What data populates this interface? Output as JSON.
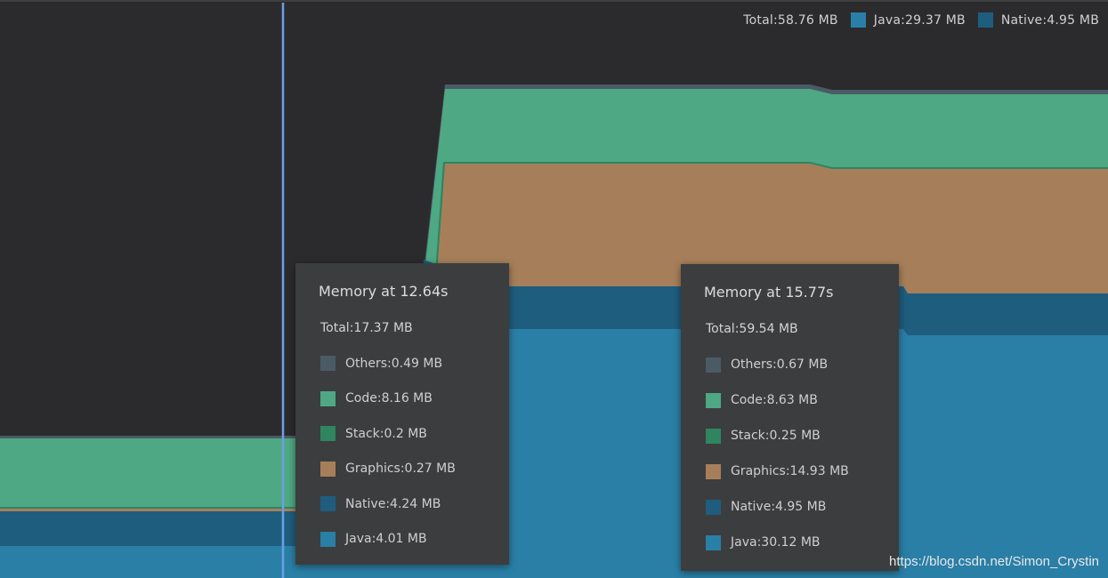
{
  "colors": {
    "background": "#2b2b2d",
    "java": "#2a7fa6",
    "native": "#1f5d7e",
    "graphics": "#a67f5a",
    "stack": "#2f8560",
    "code": "#4ea883",
    "others": "#4b5b66",
    "cursor": "#6d9ee8"
  },
  "legend": {
    "total": "Total:58.76 MB",
    "java": "Java:29.37 MB",
    "native": "Native:4.95 MB"
  },
  "chart_data": {
    "type": "area",
    "time_unit": "s",
    "y_unit": "MB",
    "cursor_time": 12.64,
    "layers": [
      "Java",
      "Native",
      "Graphics",
      "Stack",
      "Code",
      "Others"
    ],
    "series": [
      {
        "name": "Java",
        "x": [
          12.64,
          15.77
        ],
        "values": [
          4.01,
          30.12
        ]
      },
      {
        "name": "Native",
        "x": [
          12.64,
          15.77
        ],
        "values": [
          4.24,
          4.95
        ]
      },
      {
        "name": "Graphics",
        "x": [
          12.64,
          15.77
        ],
        "values": [
          0.27,
          14.93
        ]
      },
      {
        "name": "Stack",
        "x": [
          12.64,
          15.77
        ],
        "values": [
          0.2,
          0.25
        ]
      },
      {
        "name": "Code",
        "x": [
          12.64,
          15.77
        ],
        "values": [
          8.16,
          8.63
        ]
      },
      {
        "name": "Others",
        "x": [
          12.64,
          15.77
        ],
        "values": [
          0.49,
          0.67
        ]
      }
    ]
  },
  "tooltips": [
    {
      "title": "Memory at 12.64s",
      "total": "Total:17.37 MB",
      "rows": [
        {
          "label": "Others:",
          "value": "0.49 MB",
          "color": "#4b5b66"
        },
        {
          "label": "Code:",
          "value": "8.16 MB",
          "color": "#4ea883"
        },
        {
          "label": "Stack:",
          "value": "0.2 MB",
          "color": "#2f8560"
        },
        {
          "label": "Graphics:",
          "value": "0.27 MB",
          "color": "#a67f5a"
        },
        {
          "label": "Native:",
          "value": "4.24 MB",
          "color": "#1f5d7e"
        },
        {
          "label": "Java:",
          "value": "4.01 MB",
          "color": "#2a7fa6"
        }
      ]
    },
    {
      "title": "Memory at 15.77s",
      "total": "Total:59.54 MB",
      "rows": [
        {
          "label": "Others:",
          "value": "0.67 MB",
          "color": "#4b5b66"
        },
        {
          "label": "Code:",
          "value": "8.63 MB",
          "color": "#4ea883"
        },
        {
          "label": "Stack:",
          "value": "0.25 MB",
          "color": "#2f8560"
        },
        {
          "label": "Graphics:",
          "value": "14.93 MB",
          "color": "#a67f5a"
        },
        {
          "label": "Native:",
          "value": "4.95 MB",
          "color": "#1f5d7e"
        },
        {
          "label": "Java:",
          "value": "30.12 MB",
          "color": "#2a7fa6"
        }
      ]
    }
  ],
  "watermark": "https://blog.csdn.net/Simon_Crystin"
}
